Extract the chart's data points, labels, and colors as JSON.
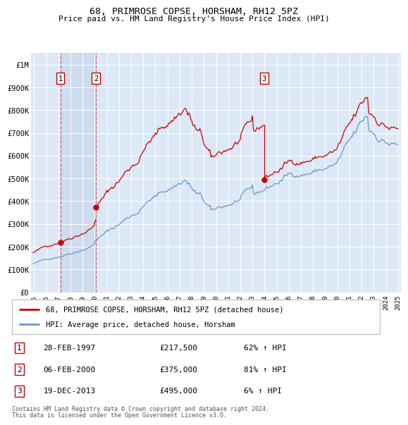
{
  "title1": "68, PRIMROSE COPSE, HORSHAM, RH12 5PZ",
  "title2": "Price paid vs. HM Land Registry's House Price Index (HPI)",
  "ylim": [
    0,
    1050000
  ],
  "xlim": [
    1994.75,
    2025.25
  ],
  "yticks": [
    0,
    100000,
    200000,
    300000,
    400000,
    500000,
    600000,
    700000,
    800000,
    900000,
    1000000
  ],
  "ytick_labels": [
    "£0",
    "£100K",
    "£200K",
    "£300K",
    "£400K",
    "£500K",
    "£600K",
    "£700K",
    "£800K",
    "£900K",
    "£1M"
  ],
  "xticks": [
    1995,
    1996,
    1997,
    1998,
    1999,
    2000,
    2001,
    2002,
    2003,
    2004,
    2005,
    2006,
    2007,
    2008,
    2009,
    2010,
    2011,
    2012,
    2013,
    2014,
    2015,
    2016,
    2017,
    2018,
    2019,
    2020,
    2021,
    2022,
    2023,
    2024,
    2025
  ],
  "transactions": [
    {
      "num": 1,
      "year": 1997.16,
      "price": 217500,
      "label": "28-FEB-1997",
      "pct": "62%",
      "direction": "↑"
    },
    {
      "num": 2,
      "year": 2000.09,
      "price": 375000,
      "label": "06-FEB-2000",
      "pct": "81%",
      "direction": "↑"
    },
    {
      "num": 3,
      "year": 2013.97,
      "price": 495000,
      "label": "19-DEC-2013",
      "pct": "6%",
      "direction": "↑"
    }
  ],
  "legend_label1": "68, PRIMROSE COPSE, HORSHAM, RH12 5PZ (detached house)",
  "legend_label2": "HPI: Average price, detached house, Horsham",
  "footer1": "Contains HM Land Registry data © Crown copyright and database right 2024.",
  "footer2": "This data is licensed under the Open Government Licence v3.0.",
  "line_color_red": "#cc0000",
  "line_color_blue": "#6699cc",
  "bg_color": "#dce8f5",
  "shade_color": "#c8d8ed",
  "vline_dashed_color": "#cc6666",
  "vline_solid_color": "#cc0000"
}
